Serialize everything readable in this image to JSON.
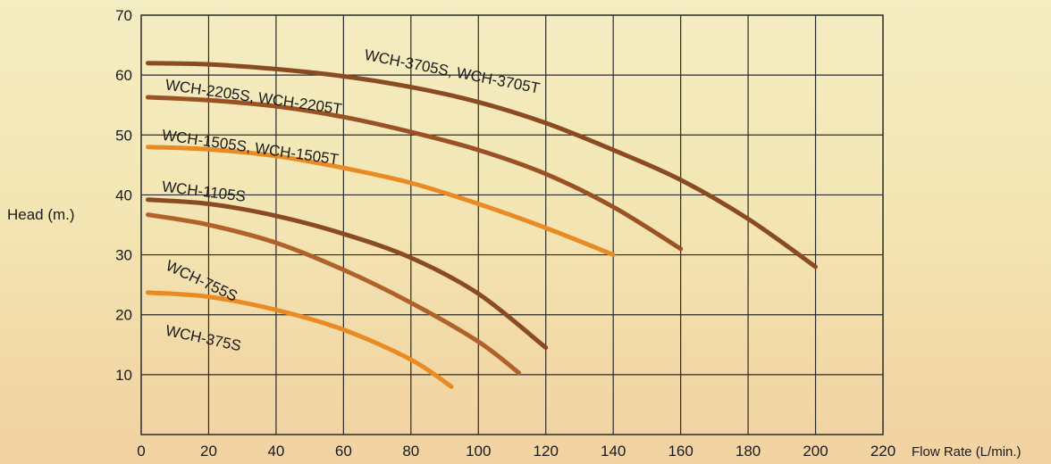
{
  "chart_data": {
    "type": "line",
    "title": "",
    "xlabel": "Flow Rate (L/min.)",
    "ylabel": "Head (m.)",
    "xlim": [
      0,
      220
    ],
    "ylim": [
      0,
      70
    ],
    "x_ticks": [
      "0",
      "20",
      "40",
      "60",
      "80",
      "100",
      "120",
      "140",
      "160",
      "180",
      "200",
      "220"
    ],
    "y_ticks": [
      "10",
      "20",
      "30",
      "40",
      "50",
      "60",
      "70"
    ],
    "grid": true,
    "series": [
      {
        "name": "WCH-3705S, WCH-3705T",
        "color": "#8a4a22",
        "points": [
          [
            2,
            62
          ],
          [
            20,
            61.8
          ],
          [
            40,
            61
          ],
          [
            60,
            59.8
          ],
          [
            80,
            58
          ],
          [
            100,
            55.5
          ],
          [
            120,
            52
          ],
          [
            140,
            47.5
          ],
          [
            160,
            42.5
          ],
          [
            180,
            36
          ],
          [
            200,
            28
          ]
        ]
      },
      {
        "name": "WCH-2205S, WCH-2205T",
        "color": "#9a5224",
        "points": [
          [
            2,
            56.3
          ],
          [
            20,
            55.8
          ],
          [
            40,
            54.8
          ],
          [
            60,
            53
          ],
          [
            80,
            50.5
          ],
          [
            100,
            47.5
          ],
          [
            120,
            43.5
          ],
          [
            140,
            38
          ],
          [
            160,
            31
          ]
        ]
      },
      {
        "name": "WCH-1505S, WCH-1505T",
        "color": "#e98a22",
        "points": [
          [
            2,
            48
          ],
          [
            20,
            47.6
          ],
          [
            40,
            46.5
          ],
          [
            60,
            44.5
          ],
          [
            80,
            42
          ],
          [
            100,
            38.5
          ],
          [
            120,
            34.5
          ],
          [
            140,
            30
          ]
        ]
      },
      {
        "name": "WCH-1105S",
        "color": "#8a4a22",
        "points": [
          [
            2,
            39.2
          ],
          [
            20,
            38.5
          ],
          [
            40,
            36.5
          ],
          [
            60,
            33.5
          ],
          [
            80,
            29.5
          ],
          [
            100,
            23.5
          ],
          [
            120,
            14.5
          ]
        ]
      },
      {
        "name": "WCH-755S",
        "color": "#b0622a",
        "points": [
          [
            2,
            36.7
          ],
          [
            20,
            35
          ],
          [
            40,
            32
          ],
          [
            60,
            27.5
          ],
          [
            80,
            22
          ],
          [
            100,
            15.5
          ],
          [
            112,
            10.3
          ]
        ]
      },
      {
        "name": "WCH-375S",
        "color": "#e98a22",
        "points": [
          [
            2,
            23.7
          ],
          [
            20,
            23
          ],
          [
            40,
            20.8
          ],
          [
            60,
            17.5
          ],
          [
            80,
            12.5
          ],
          [
            92,
            8
          ]
        ]
      }
    ],
    "labels": [
      {
        "text": "WCH-3705S, WCH-3705T",
        "x": 66,
        "y": 62.6,
        "angle": 11
      },
      {
        "text": "WCH-2205S, WCH-2205T",
        "x": 7,
        "y": 57.6,
        "angle": 8
      },
      {
        "text": "WCH-1505S, WCH-1505T",
        "x": 6,
        "y": 49.2,
        "angle": 8
      },
      {
        "text": "WCH-1105S",
        "x": 6,
        "y": 40.6,
        "angle": 7
      },
      {
        "text": "WCH-755S",
        "x": 7,
        "y": 27.6,
        "angle": 25
      },
      {
        "text": "WCH-375S",
        "x": 7,
        "y": 16.6,
        "angle": 12
      }
    ]
  }
}
